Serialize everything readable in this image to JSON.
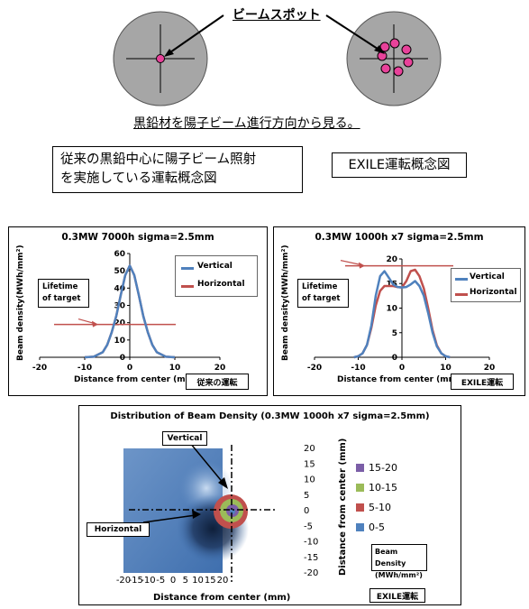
{
  "top": {
    "spot_label": "ビームスポット",
    "caption": "黒鉛材を陽子ビーム進行方向から見る。",
    "box_left_line1": "従来の黒鉛中心に陽子ビーム照射",
    "box_left_line2": "を実施している運転概念図",
    "box_right": "EXILE運転概念図"
  },
  "panel1": {
    "title": "0.3MW 7000h sigma=2.5mm",
    "ylabel": "Beam density(MWh/mm²)",
    "xlabel": "Distance from center (mm)",
    "tag": "従来の運転",
    "legend_vertical": "Vertical",
    "legend_horizontal": "Horizontal",
    "lifetime_line1": "Lifetime",
    "lifetime_line2": "of target",
    "xticks": [
      "-20",
      "-10",
      "0",
      "10",
      "20"
    ],
    "yticks": [
      "0",
      "10",
      "20",
      "30",
      "40",
      "50",
      "60"
    ]
  },
  "panel2": {
    "title": "0.3MW 1000h x7 sigma=2.5mm",
    "ylabel": "Beam density(MWh/mm²)",
    "xlabel": "Distance from center (mm)",
    "tag": "EXILE運転",
    "legend_vertical": "Vertical",
    "legend_horizontal": "Horizontal",
    "lifetime_line1": "Lifetime",
    "lifetime_line2": "of target",
    "xticks": [
      "-20",
      "-10",
      "0",
      "10",
      "20"
    ],
    "yticks": [
      "0",
      "5",
      "10",
      "15",
      "20"
    ]
  },
  "panel3": {
    "title": "Distribution of Beam Density (0.3MW 1000h x7 sigma=2.5mm)",
    "vertical_label": "Vertical",
    "horizontal_label": "Horizontal",
    "xlabel": "Distance from center (mm)",
    "ylabel": "Distance from center (mm)",
    "xticks": [
      "-20",
      "-15",
      "-10",
      "-5",
      "0",
      "5",
      "10",
      "15",
      "20"
    ],
    "yticks": [
      "20",
      "15",
      "10",
      "5",
      "0",
      "-5",
      "-10",
      "-15",
      "-20"
    ],
    "legend": [
      {
        "label": "15-20",
        "color": "#7b5ea7"
      },
      {
        "label": "10-15",
        "color": "#9bbb59"
      },
      {
        "label": "5-10",
        "color": "#c0504d"
      },
      {
        "label": "0-5",
        "color": "#4f81bd"
      }
    ],
    "legend_title_line1": "Beam Density",
    "legend_title_line2": "(MWh/mm²)",
    "tag": "EXILE運転"
  },
  "colors": {
    "vertical": "#4f81bd",
    "horizontal": "#c0504d",
    "graphite": "#a6a6a6",
    "spot": "#e8429a"
  },
  "chart_data": [
    {
      "type": "line",
      "title": "0.3MW 7000h sigma=2.5mm",
      "xlabel": "Distance from center (mm)",
      "ylabel": "Beam density(MWh/mm²)",
      "xlim": [
        -20,
        20
      ],
      "ylim": [
        0,
        60
      ],
      "x": [
        -10,
        -8,
        -6,
        -5,
        -4,
        -3,
        -2,
        -1,
        0,
        1,
        2,
        3,
        4,
        5,
        6,
        8,
        10
      ],
      "series": [
        {
          "name": "Vertical",
          "values": [
            0,
            0.3,
            2.9,
            7.2,
            14.5,
            23.8,
            36,
            47.5,
            53,
            47.5,
            36,
            23.8,
            14.5,
            7.2,
            2.9,
            0.3,
            0
          ]
        },
        {
          "name": "Horizontal",
          "values": [
            0,
            0.3,
            2.9,
            7.2,
            14.5,
            23.8,
            36,
            47.5,
            53,
            47.5,
            36,
            23.8,
            14.5,
            7.2,
            2.9,
            0.3,
            0
          ]
        }
      ],
      "lifetime_y": 19,
      "legend": "top-right"
    },
    {
      "type": "line",
      "title": "0.3MW 1000h x7 sigma=2.5mm",
      "xlabel": "Distance from center (mm)",
      "ylabel": "Beam density(MWh/mm²)",
      "xlim": [
        -20,
        20
      ],
      "ylim": [
        0,
        20
      ],
      "x": [
        -11,
        -10,
        -9,
        -8,
        -7,
        -6,
        -5,
        -4,
        -3,
        -2,
        -1,
        0,
        1,
        2,
        3,
        4,
        5,
        6,
        7,
        8,
        9,
        10,
        11
      ],
      "series": [
        {
          "name": "Vertical",
          "values": [
            0,
            0.2,
            0.8,
            2.5,
            6.5,
            12.5,
            16.5,
            17.5,
            16.2,
            14.8,
            14.3,
            14.2,
            14.3,
            14.8,
            15.5,
            14.5,
            12.5,
            9,
            5,
            2.2,
            0.8,
            0.2,
            0
          ]
        },
        {
          "name": "Horizontal",
          "values": [
            0,
            0.2,
            0.8,
            2.5,
            6,
            10.5,
            13.5,
            14.5,
            14.5,
            14.5,
            14.3,
            14.2,
            15.5,
            17.5,
            17.8,
            16.5,
            14,
            10,
            5.5,
            2.4,
            0.8,
            0.2,
            0
          ]
        }
      ],
      "lifetime_y": 18.6,
      "legend": "top-right"
    },
    {
      "type": "heatmap",
      "title": "Distribution of Beam Density (0.3MW 1000h x7 sigma=2.5mm)",
      "xlabel": "Distance from center (mm)",
      "ylabel": "Distance from center (mm)",
      "xlim": [
        -20,
        20
      ],
      "ylim": [
        -20,
        20
      ],
      "bins": [
        "0-5",
        "5-10",
        "10-15",
        "15-20"
      ]
    }
  ]
}
